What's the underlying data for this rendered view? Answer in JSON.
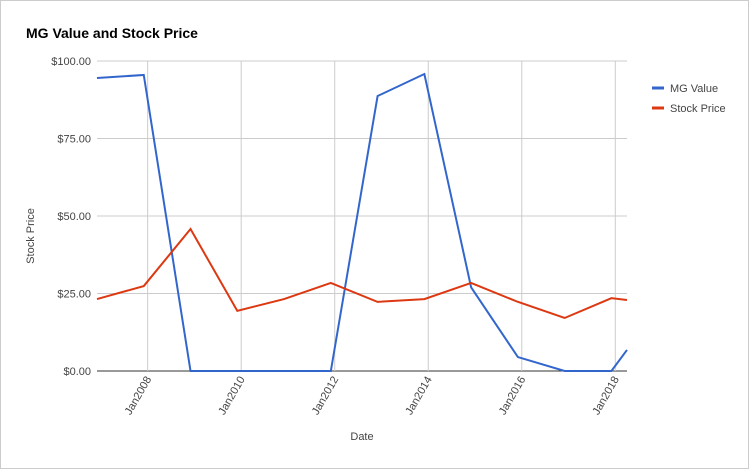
{
  "chart_data": {
    "type": "line",
    "title": "MG Value and Stock Price",
    "x_label": "Date",
    "y_label": "Stock Price",
    "x": [
      "2006-12",
      "2007-12",
      "2008-12",
      "2009-12",
      "2010-12",
      "2011-12",
      "2012-12",
      "2013-12",
      "2014-12",
      "2015-12",
      "2016-12",
      "2017-12",
      "2018-04"
    ],
    "series": [
      {
        "name": "MG Value",
        "color": "#3366cc",
        "values": [
          94.5,
          95.5,
          0,
          0,
          0,
          0,
          88.7,
          95.8,
          27,
          4.5,
          0,
          0,
          6.8
        ]
      },
      {
        "name": "Stock Price",
        "color": "#dc3912",
        "values": [
          23.2,
          27.4,
          45.8,
          19.4,
          23.2,
          28.4,
          22.3,
          23.2,
          28.4,
          22.3,
          17.1,
          23.5,
          22.9
        ]
      }
    ],
    "xlim": [
      "2006-12",
      "2018-04"
    ],
    "xticks": [
      {
        "value": "2008-01",
        "label": "Jan2008"
      },
      {
        "value": "2010-01",
        "label": "Jan2010"
      },
      {
        "value": "2012-01",
        "label": "Jan2012"
      },
      {
        "value": "2014-01",
        "label": "Jan2014"
      },
      {
        "value": "2016-01",
        "label": "Jan2016"
      },
      {
        "value": "2018-01",
        "label": "Jan2018"
      }
    ],
    "ylim": [
      0,
      100
    ],
    "yticks": [
      {
        "value": 0,
        "label": "$0.00"
      },
      {
        "value": 25,
        "label": "$25.00"
      },
      {
        "value": 50,
        "label": "$50.00"
      },
      {
        "value": 75,
        "label": "$75.00"
      },
      {
        "value": 100,
        "label": "$100.00"
      }
    ],
    "grid": true,
    "legend": "right"
  }
}
